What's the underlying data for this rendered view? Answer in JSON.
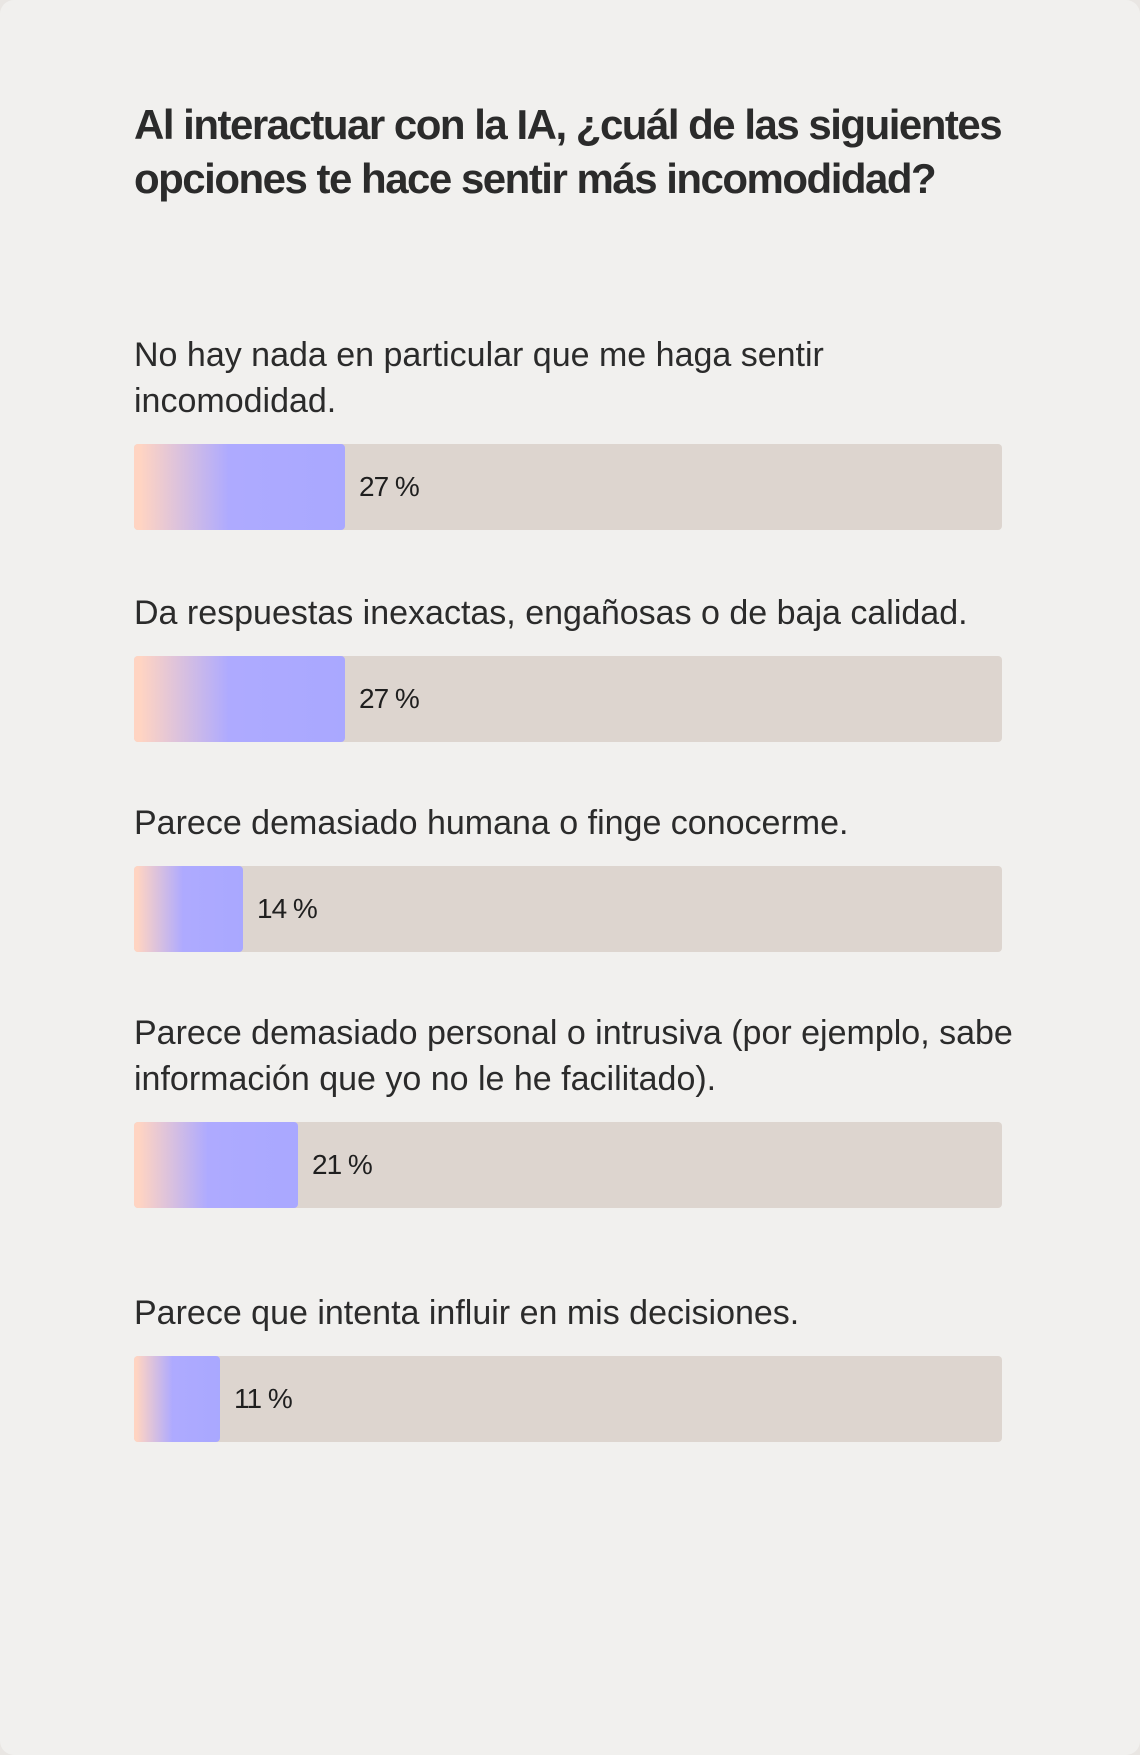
{
  "title": "Al interactuar con la IA, ¿cuál de las siguientes opciones te hace sentir más incomodidad?",
  "colors": {
    "background": "#f1f0ee",
    "track": "#ddd5cf",
    "bar_gradient_start": "#ffd4c2",
    "bar_gradient_end": "#a9a8ff",
    "text": "#2b2b2b"
  },
  "chart_data": {
    "type": "bar",
    "orientation": "horizontal",
    "title": "Al interactuar con la IA, ¿cuál de las siguientes opciones te hace sentir más incomodidad?",
    "categories": [
      "No hay nada en particular que me haga sentir incomodidad.",
      "Da respuestas inexactas, engañosas o de baja calidad.",
      "Parece demasiado humana o finge conocerme.",
      "Parece demasiado personal o intrusiva (por ejemplo, sabe información que yo no le he facilitado).",
      "Parece que intenta influir en mis decisiones."
    ],
    "values": [
      27,
      27,
      14,
      21,
      11
    ],
    "value_labels": [
      "27 %",
      "27 %",
      "14 %",
      "21 %",
      "11 %"
    ],
    "xlim": [
      0,
      100
    ],
    "grid": false,
    "legend": "none"
  }
}
